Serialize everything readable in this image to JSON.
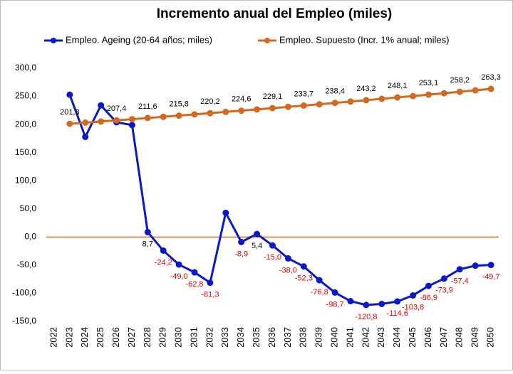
{
  "chart_data": {
    "type": "line",
    "title": "Incremento anual del Empleo (miles)",
    "categories": [
      "2022",
      "2023",
      "2024",
      "2025",
      "2026",
      "2027",
      "2028",
      "2029",
      "2030",
      "2031",
      "2032",
      "2033",
      "2034",
      "2035",
      "2036",
      "2037",
      "2038",
      "2039",
      "2040",
      "2041",
      "2042",
      "2043",
      "2044",
      "2045",
      "2046",
      "2047",
      "2048",
      "2049",
      "2050"
    ],
    "series": [
      {
        "name": "Empleo. Ageing (20-64 años; miles)",
        "color": "#0a18c8",
        "label_color": "#000000",
        "negative_label_color": "#e00000",
        "label_position": "below",
        "values": [
          null,
          253,
          178,
          234,
          204,
          199,
          8.7,
          -24.2,
          -49.0,
          -62.8,
          -81.3,
          43,
          -8.9,
          5.4,
          -15.0,
          -38.0,
          -52.3,
          -76.8,
          -98.7,
          -114,
          -120.8,
          -119,
          -114.6,
          -103.8,
          -86.9,
          -73.9,
          -57.4,
          -51,
          -49.7
        ],
        "value_labels": [
          null,
          null,
          null,
          null,
          null,
          null,
          "8,7",
          "-24,2",
          "-49,0",
          "-62,8",
          "-81,3",
          null,
          "-8,9",
          "5,4",
          "-15,0",
          "-38,0",
          "-52,3",
          "-76,8",
          "-98,7",
          null,
          "-120,8",
          null,
          "-114,6",
          "-103,8",
          "-86,9",
          "-73,9",
          "-57,4",
          null,
          "-49,7"
        ]
      },
      {
        "name": "Empleo. Supuesto (Incr. 1% anual; miles)",
        "color": "#d2691e",
        "label_color": "#000000",
        "negative_label_color": "#000000",
        "label_position": "above",
        "values": [
          null,
          201.3,
          203.3,
          205.3,
          207.4,
          209.5,
          211.6,
          213.7,
          215.8,
          218.0,
          220.2,
          222.4,
          224.6,
          226.8,
          229.1,
          231.4,
          233.7,
          236.0,
          238.4,
          240.8,
          243.2,
          245.6,
          248.1,
          250.6,
          253.1,
          255.6,
          258.2,
          260.8,
          263.3
        ],
        "value_labels": [
          null,
          "201,3",
          null,
          null,
          "207,4",
          null,
          "211,6",
          null,
          "215,8",
          null,
          "220,2",
          null,
          "224,6",
          null,
          "229,1",
          null,
          "233,7",
          null,
          "238,4",
          null,
          "243,2",
          null,
          "248,1",
          null,
          "253,1",
          null,
          "258,2",
          null,
          "263,3"
        ]
      }
    ],
    "ylim": [
      -150,
      300
    ],
    "yticks": [
      {
        "value": -150,
        "label": "-150,0"
      },
      {
        "value": -100,
        "label": "-100,0"
      },
      {
        "value": -50,
        "label": "-50,0"
      },
      {
        "value": 0,
        "label": "0,0"
      },
      {
        "value": 50,
        "label": "50,0"
      },
      {
        "value": 100,
        "label": "100,0"
      },
      {
        "value": 150,
        "label": "150,0"
      },
      {
        "value": 200,
        "label": "200,0"
      },
      {
        "value": 250,
        "label": "250,0"
      },
      {
        "value": 300,
        "label": "300,0"
      }
    ],
    "grid": false,
    "zero_line_color": "#d2691e",
    "legend": "top"
  }
}
